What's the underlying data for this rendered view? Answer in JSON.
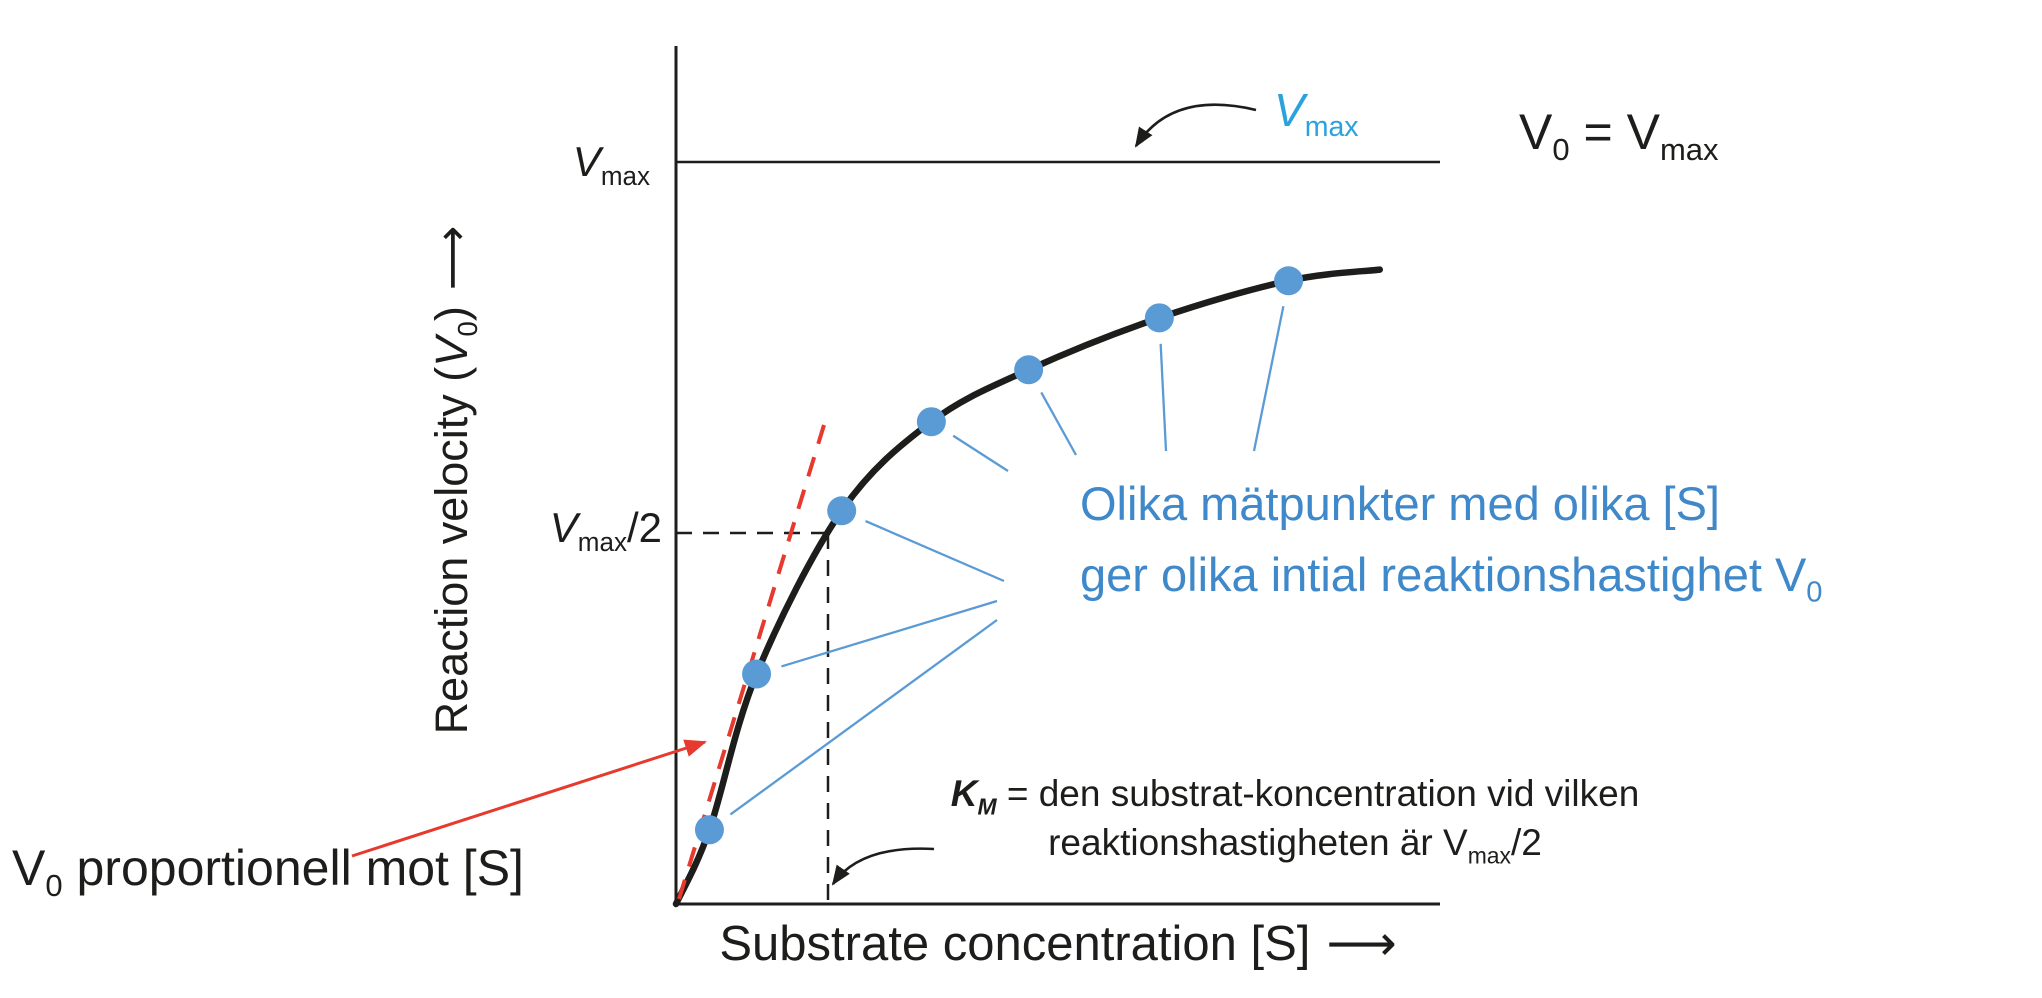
{
  "colors": {
    "background": "#ffffff",
    "axis": "#1d1d1b",
    "curve": "#1d1d1b",
    "dashed": "#1d1d1b",
    "tangent_red": "#e63a2e",
    "arrow_red": "#e63a2e",
    "point_blue": "#5b9bd5",
    "connector_blue": "#5b9bd5",
    "note_blue": "#3f88c9",
    "vmax_callout_blue": "#2aa3dc",
    "text": "#1d1d1b"
  },
  "labels": {
    "y_axis": {
      "pre": "Reaction velocity (",
      "sym": "V",
      "sub": "0",
      "post": ")",
      "arrow": "⟶"
    },
    "x_axis": {
      "text": "Substrate concentration [S]",
      "arrow": "⟶"
    },
    "vmax_tick": {
      "sym": "V",
      "sub": "max"
    },
    "vmax_half_tick": {
      "sym": "V",
      "sub": "max",
      "post": "/2"
    },
    "vmax_callout": {
      "sym": "V",
      "sub": "max"
    },
    "v0_eq_vmax": {
      "sym1": "V",
      "sub1": "0",
      "mid": " = ",
      "sym2": "V",
      "sub2": "max"
    },
    "note": {
      "line1": "Olika mätpunkter med olika [S]",
      "line2_pre": "ger olika intial reaktionshastighet V",
      "line2_sub": "0"
    },
    "km_note": {
      "sym": "K",
      "sym_sub": "M",
      "line1_rest": " = den substrat-koncentration vid vilken",
      "line2_pre": "reaktionshastigheten är V",
      "line2_sub": "max",
      "line2_post": "/2"
    },
    "v0_prop": {
      "sym": "V",
      "sub": "0",
      "rest": " proportionell mot [S]"
    }
  },
  "chart_data": {
    "type": "line",
    "xlabel": "Substrate concentration [S]",
    "ylabel": "Reaction velocity (V0)",
    "x_tick_labels": [],
    "y_reference_labels": [
      "Vmax",
      "Vmax/2"
    ],
    "asymptote": {
      "label": "Vmax",
      "v_over_vmax": 1.0
    },
    "half_vmax_marker": {
      "s_over_km": 1.0,
      "v_over_vmax": 0.5
    },
    "curve_start": {
      "s_over_km": 0,
      "v_over_vmax": 0
    },
    "curve_end": {
      "s_over_km": 4.63,
      "v_over_vmax": 0.855
    },
    "points_normalized": [
      {
        "s_over_km": 0.22,
        "v_over_vmax": 0.1
      },
      {
        "s_over_km": 0.53,
        "v_over_vmax": 0.31
      },
      {
        "s_over_km": 1.09,
        "v_over_vmax": 0.53
      },
      {
        "s_over_km": 1.68,
        "v_over_vmax": 0.65
      },
      {
        "s_over_km": 2.32,
        "v_over_vmax": 0.72
      },
      {
        "s_over_km": 3.18,
        "v_over_vmax": 0.79
      },
      {
        "s_over_km": 4.03,
        "v_over_vmax": 0.84
      }
    ]
  }
}
